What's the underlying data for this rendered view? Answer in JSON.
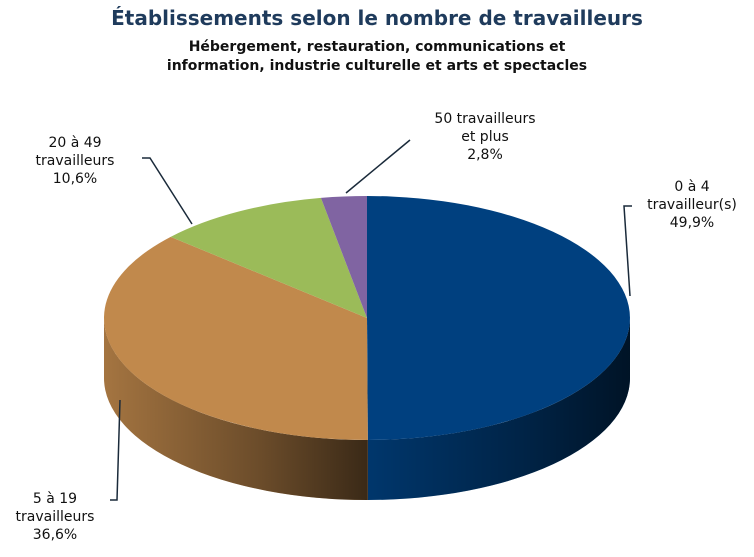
{
  "chart_data": {
    "type": "pie3d",
    "title": "Établissements selon le nombre de travailleurs",
    "subtitle": "Hébergement, restauration, communications et\ninformation, industrie culturelle et arts et spectacles",
    "categories": [
      "0 à 4\ntravailleur(s)",
      "5 à 19\ntravailleurs",
      "20 à 49\ntravailleurs",
      "50 travailleurs\net plus"
    ],
    "values": [
      49.9,
      36.6,
      10.6,
      2.8
    ],
    "value_labels": [
      "49,9%",
      "36,6%",
      "10,6%",
      "2,8%"
    ],
    "colors": [
      "#00407f",
      "#c1894c",
      "#9bbb59",
      "#8064a2"
    ]
  }
}
